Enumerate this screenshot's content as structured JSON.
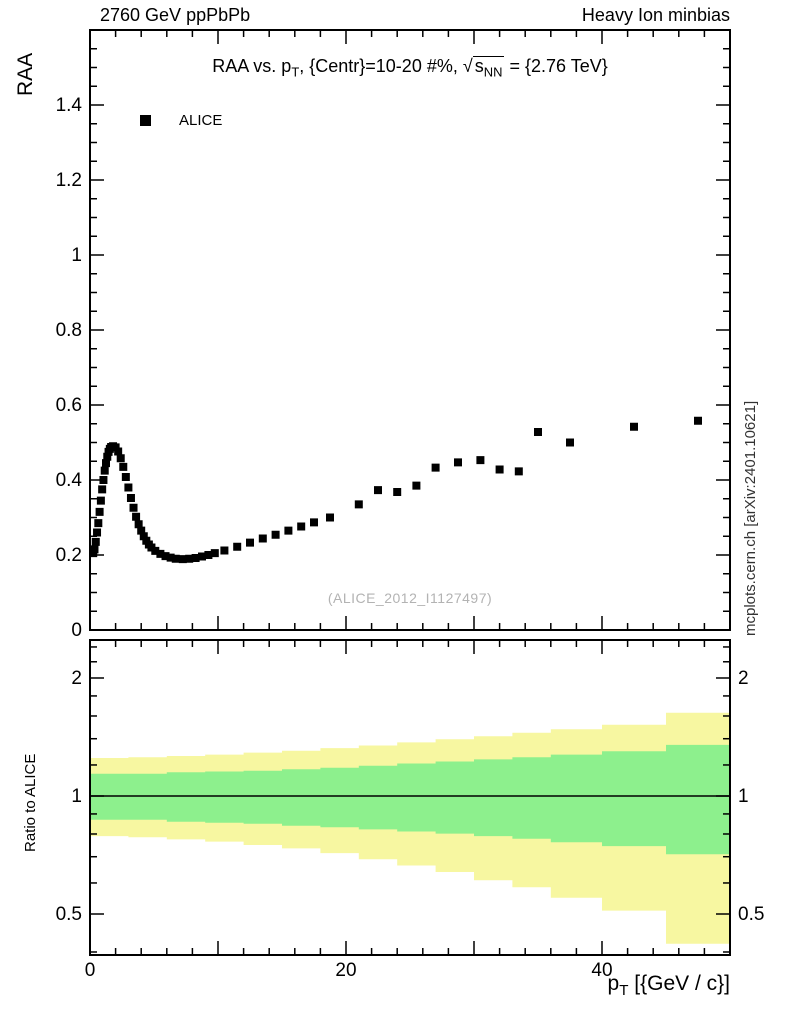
{
  "header": {
    "left": "2760 GeV ppPbPb",
    "right": "Heavy Ion minbias"
  },
  "titles": {
    "main": {
      "prefix": "RAA vs. p",
      "sub": "T",
      "mid": ", {Centr}=10-20 #%, ",
      "sqrt_sym": "√",
      "sqrt_body": "s",
      "sqrt_sub": "NN",
      "suffix": " = {2.76 TeV}"
    }
  },
  "legend": {
    "entries": [
      {
        "label": "ALICE",
        "marker": "filled-square",
        "color": "#000000"
      }
    ]
  },
  "watermark": "(ALICE_2012_I1127497)",
  "side_note": "mcplots.cern.ch [arXiv:2401.10621]",
  "axes": {
    "x": {
      "title_prefix": "p",
      "title_sub": "T",
      "title_suffix": " [{GeV / c}]",
      "tick_labels": [
        0,
        20,
        40
      ],
      "major_step": 10,
      "minor_step": 2,
      "range": [
        0,
        50
      ]
    },
    "y_main": {
      "label": "RAA",
      "tick_labels": [
        0,
        0.2,
        0.4,
        0.6,
        0.8,
        1,
        1.2,
        1.4
      ],
      "major_step": 0.2,
      "minor_step": 0.05,
      "range": [
        0,
        1.6
      ]
    },
    "y_ratio": {
      "label": "Ratio to ALICE",
      "tick_labels": [
        0.5,
        1,
        2
      ],
      "minor_ticks": [
        0.4,
        0.6,
        0.7,
        0.8,
        0.9,
        1.2,
        1.4,
        1.6,
        1.8,
        2.2,
        2.4
      ],
      "range": [
        0.394,
        2.5
      ],
      "scale": "log"
    }
  },
  "colors": {
    "marker": "#000000",
    "band_outer": "#f7f7a1",
    "band_inner": "#8df08d",
    "frame": "#000000",
    "watermark": "#b3b3b3",
    "side_note": "#333333"
  },
  "chart_data": [
    {
      "type": "scatter",
      "title": "RAA vs. pT, Centr=10-20 %, sqrt(s_NN) = 2.76 TeV",
      "xlabel": "pT [GeV/c]",
      "ylabel": "RAA",
      "xlim": [
        0,
        50
      ],
      "ylim": [
        0,
        1.6
      ],
      "grid": false,
      "legend_position": "top-left",
      "series": [
        {
          "name": "ALICE",
          "marker": "filled-square",
          "color": "#000000",
          "points": [
            [
              0.25,
              0.205
            ],
            [
              0.35,
              0.215
            ],
            [
              0.45,
              0.235
            ],
            [
              0.55,
              0.26
            ],
            [
              0.65,
              0.285
            ],
            [
              0.75,
              0.315
            ],
            [
              0.85,
              0.345
            ],
            [
              0.95,
              0.375
            ],
            [
              1.05,
              0.4
            ],
            [
              1.15,
              0.425
            ],
            [
              1.25,
              0.445
            ],
            [
              1.35,
              0.462
            ],
            [
              1.45,
              0.475
            ],
            [
              1.55,
              0.483
            ],
            [
              1.65,
              0.488
            ],
            [
              1.8,
              0.49
            ],
            [
              2.0,
              0.487
            ],
            [
              2.2,
              0.476
            ],
            [
              2.4,
              0.458
            ],
            [
              2.6,
              0.435
            ],
            [
              2.8,
              0.408
            ],
            [
              3.0,
              0.38
            ],
            [
              3.2,
              0.352
            ],
            [
              3.4,
              0.326
            ],
            [
              3.6,
              0.302
            ],
            [
              3.8,
              0.282
            ],
            [
              4.0,
              0.265
            ],
            [
              4.2,
              0.25
            ],
            [
              4.4,
              0.238
            ],
            [
              4.6,
              0.228
            ],
            [
              4.8,
              0.22
            ],
            [
              5.1,
              0.211
            ],
            [
              5.5,
              0.203
            ],
            [
              5.9,
              0.197
            ],
            [
              6.3,
              0.193
            ],
            [
              6.7,
              0.19
            ],
            [
              7.25,
              0.189
            ],
            [
              7.75,
              0.19
            ],
            [
              8.25,
              0.192
            ],
            [
              8.75,
              0.196
            ],
            [
              9.25,
              0.2
            ],
            [
              9.75,
              0.205
            ],
            [
              10.5,
              0.212
            ],
            [
              11.5,
              0.222
            ],
            [
              12.5,
              0.233
            ],
            [
              13.5,
              0.244
            ],
            [
              14.5,
              0.254
            ],
            [
              15.5,
              0.265
            ],
            [
              16.5,
              0.276
            ],
            [
              17.5,
              0.287
            ],
            [
              18.75,
              0.3
            ],
            [
              21,
              0.335
            ],
            [
              22.5,
              0.373
            ],
            [
              24,
              0.368
            ],
            [
              25.5,
              0.385
            ],
            [
              27,
              0.433
            ],
            [
              28.75,
              0.447
            ],
            [
              30.5,
              0.453
            ],
            [
              32,
              0.428
            ],
            [
              33.5,
              0.423
            ],
            [
              35,
              0.528
            ],
            [
              37.5,
              0.5
            ],
            [
              42.5,
              0.542
            ],
            [
              47.5,
              0.558
            ]
          ]
        }
      ]
    },
    {
      "type": "area",
      "title": "Ratio to ALICE",
      "xlabel": "pT [GeV/c]",
      "ylabel": "Ratio to ALICE",
      "xlim": [
        0,
        50
      ],
      "ylim": [
        0.394,
        2.5
      ],
      "yscale": "log",
      "reference_line_y": 1,
      "bin_format": "x0_x1_lo_hi",
      "bands": [
        {
          "name": "outer-uncertainty-band",
          "color": "#f7f7a1",
          "bins": [
            [
              0,
              3,
              0.79,
              1.25
            ],
            [
              3,
              6,
              0.785,
              1.255
            ],
            [
              6,
              9,
              0.775,
              1.265
            ],
            [
              9,
              12,
              0.765,
              1.275
            ],
            [
              12,
              15,
              0.75,
              1.29
            ],
            [
              15,
              18,
              0.735,
              1.305
            ],
            [
              18,
              21,
              0.715,
              1.325
            ],
            [
              21,
              24,
              0.69,
              1.345
            ],
            [
              24,
              27,
              0.665,
              1.37
            ],
            [
              27,
              30,
              0.64,
              1.395
            ],
            [
              30,
              33,
              0.61,
              1.42
            ],
            [
              33,
              36,
              0.585,
              1.45
            ],
            [
              36,
              40,
              0.55,
              1.48
            ],
            [
              40,
              45,
              0.51,
              1.52
            ],
            [
              45,
              50,
              0.42,
              1.63
            ]
          ]
        },
        {
          "name": "inner-uncertainty-band",
          "color": "#8df08d",
          "bins": [
            [
              0,
              3,
              0.87,
              1.14
            ],
            [
              3,
              6,
              0.87,
              1.14
            ],
            [
              6,
              9,
              0.86,
              1.15
            ],
            [
              9,
              12,
              0.855,
              1.155
            ],
            [
              12,
              15,
              0.85,
              1.16
            ],
            [
              15,
              18,
              0.84,
              1.17
            ],
            [
              18,
              21,
              0.832,
              1.18
            ],
            [
              21,
              24,
              0.822,
              1.195
            ],
            [
              24,
              27,
              0.812,
              1.21
            ],
            [
              27,
              30,
              0.802,
              1.225
            ],
            [
              30,
              33,
              0.79,
              1.24
            ],
            [
              33,
              36,
              0.778,
              1.255
            ],
            [
              36,
              40,
              0.762,
              1.275
            ],
            [
              40,
              45,
              0.745,
              1.3
            ],
            [
              45,
              50,
              0.71,
              1.35
            ]
          ]
        }
      ]
    }
  ]
}
